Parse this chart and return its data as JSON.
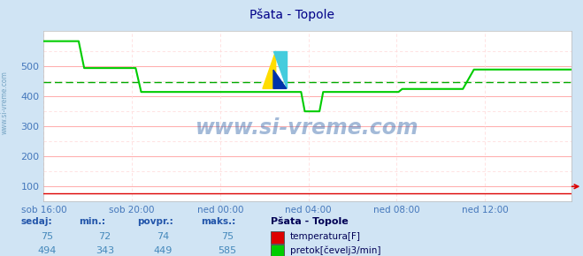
{
  "title": "Pšata - Topole",
  "bg_color": "#d0e4f4",
  "plot_bg_color": "#ffffff",
  "fig_width": 6.59,
  "fig_height": 2.9,
  "ylim": [
    50,
    620
  ],
  "yticks": [
    100,
    200,
    300,
    400,
    500
  ],
  "xlabel_color": "#4477bb",
  "ylabel_color": "#4477bb",
  "title_color": "#000088",
  "grid_color_major": "#ffaaaa",
  "grid_color_minor": "#ffdddd",
  "watermark": "www.si-vreme.com",
  "x_labels": [
    "sob 16:00",
    "sob 20:00",
    "ned 00:00",
    "ned 04:00",
    "ned 08:00",
    "ned 12:00"
  ],
  "n_points": 288,
  "temp_value": 75,
  "temp_min": 72,
  "temp_avg": 74,
  "temp_max": 75,
  "flow_value": 494,
  "flow_min": 343,
  "flow_avg": 449,
  "flow_max": 585,
  "station": "Pšata - Topole",
  "legend_temp": "temperatura[F]",
  "legend_flow": "pretok[čevelj3/min]",
  "temp_color": "#dd0000",
  "flow_color": "#00cc00",
  "avg_line_color": "#00aa00",
  "avg_flow": 449,
  "sidebar_text": "www.si-vreme.com",
  "sidebar_color": "#6699bb",
  "header_color": "#2255aa",
  "value_color": "#4488bb"
}
